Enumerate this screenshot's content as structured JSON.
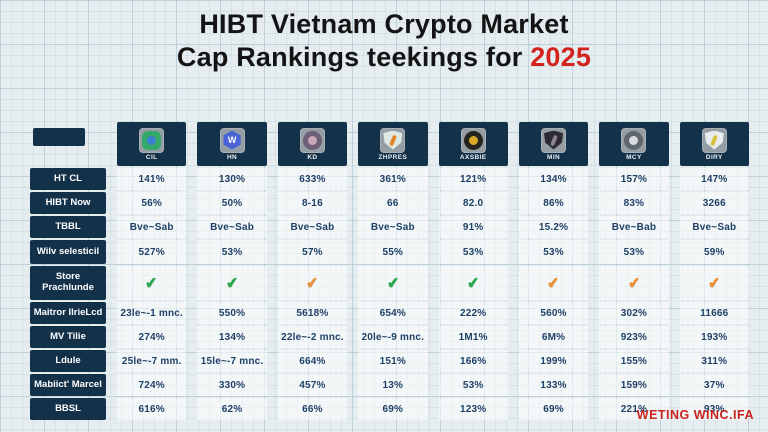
{
  "title": {
    "line1": "HIBT Vietnam Crypto Market",
    "line2_prefix": "Cap Rankings teekings for ",
    "year": "2025"
  },
  "check_glyph": "✔",
  "check_colors": {
    "green": "#2aa84e",
    "orange": "#e89136"
  },
  "watermark": "WETING WINC.IFA",
  "colors": {
    "background": "#e6edf0",
    "grid_line": "#9bb5c2",
    "header_box": "#14314a",
    "cell_text": "#1e4066",
    "title_text": "#141414",
    "year_red": "#d2231f",
    "watermark_red": "#c8231d"
  },
  "chart_data": {
    "type": "table",
    "title": "HIBT Vietnam Crypto Market Cap Rankings teekings for 2025",
    "legend_position": "none",
    "grid": true,
    "columns": [
      {
        "label": "CIL",
        "icon": "badge-green-icon",
        "shape": "badge",
        "glyph": "",
        "icon_bg": "#35a86b",
        "icon_fg": "#3c7fd0"
      },
      {
        "label": "HN",
        "icon": "hexagon-w-icon",
        "shape": "hex",
        "glyph": "W",
        "icon_bg": "#4a63d8",
        "icon_fg": "#ffffff"
      },
      {
        "label": "KD",
        "icon": "circle-figure-icon",
        "shape": "circle",
        "glyph": "",
        "icon_bg": "#6d5f75",
        "icon_fg": "#c9a6b8"
      },
      {
        "label": "ZHPRES",
        "icon": "shield-crest-icon",
        "shape": "shield",
        "glyph": "",
        "icon_bg": "#dfe9e4",
        "icon_fg": "#e0862e"
      },
      {
        "label": "AXSBIE",
        "icon": "circle-eagle-icon",
        "shape": "circle",
        "glyph": "",
        "icon_bg": "#26241e",
        "icon_fg": "#d8a827"
      },
      {
        "label": "MIN",
        "icon": "shield-dark-icon",
        "shape": "shield",
        "glyph": "",
        "icon_bg": "#2e2a33",
        "icon_fg": "#8a8494"
      },
      {
        "label": "MCY",
        "icon": "circle-plane-icon",
        "shape": "circle",
        "glyph": "",
        "icon_bg": "#5f666c",
        "icon_fg": "#d8dde2"
      },
      {
        "label": "DIRY",
        "icon": "shield-light-icon",
        "shape": "shield",
        "glyph": "",
        "icon_bg": "#e8ecef",
        "icon_fg": "#d9c23a"
      }
    ],
    "rows": [
      {
        "label": "HT CL",
        "type": "text",
        "cells": [
          "141%",
          "130%",
          "633%",
          "361%",
          "121%",
          "134%",
          "157%",
          "147%"
        ]
      },
      {
        "label": "HIBT Now",
        "type": "text",
        "cells": [
          "56%",
          "50%",
          "8-16",
          "66",
          "82.0",
          "86%",
          "83%",
          "3266"
        ]
      },
      {
        "label": "TBBL",
        "type": "text",
        "cells": [
          "Bve~Sab",
          "Bve~Sab",
          "Bve~Sab",
          "Bve~Sab",
          "91%",
          "15.2%",
          "Bve~Bab",
          "Bve~Sab"
        ]
      },
      {
        "label": "Wilv selesticil",
        "type": "text",
        "cells": [
          "527%",
          "53%",
          "57%",
          "55%",
          "53%",
          "53%",
          "53%",
          "59%"
        ]
      },
      {
        "label": "Store Prachlunde",
        "type": "check",
        "checks": [
          "green",
          "green",
          "orange",
          "green",
          "green",
          "orange",
          "orange",
          "orange"
        ]
      },
      {
        "label": "Maitror IlrieLcd",
        "type": "text",
        "cells": [
          "23le~-1 mnc.",
          "550%",
          "5618%",
          "654%",
          "222%",
          "560%",
          "302%",
          "11666"
        ]
      },
      {
        "label": "MV Tilie",
        "type": "text",
        "cells": [
          "274%",
          "134%",
          "22le~-2 mnc.",
          "20le~-9 mnc.",
          "1M1%",
          "6M%",
          "923%",
          "193%"
        ]
      },
      {
        "label": "Ldule",
        "type": "text",
        "cells": [
          "25le~-7 mm.",
          "15le~-7 mnc.",
          "664%",
          "151%",
          "166%",
          "199%",
          "155%",
          "311%"
        ]
      },
      {
        "label": "Mabiict' Marcel",
        "type": "text",
        "cells": [
          "724%",
          "330%",
          "457%",
          "13%",
          "53%",
          "133%",
          "159%",
          "37%"
        ]
      },
      {
        "label": "BBSL",
        "type": "text",
        "cells": [
          "616%",
          "62%",
          "66%",
          "69%",
          "123%",
          "69%",
          "221%",
          "93%"
        ]
      }
    ]
  }
}
